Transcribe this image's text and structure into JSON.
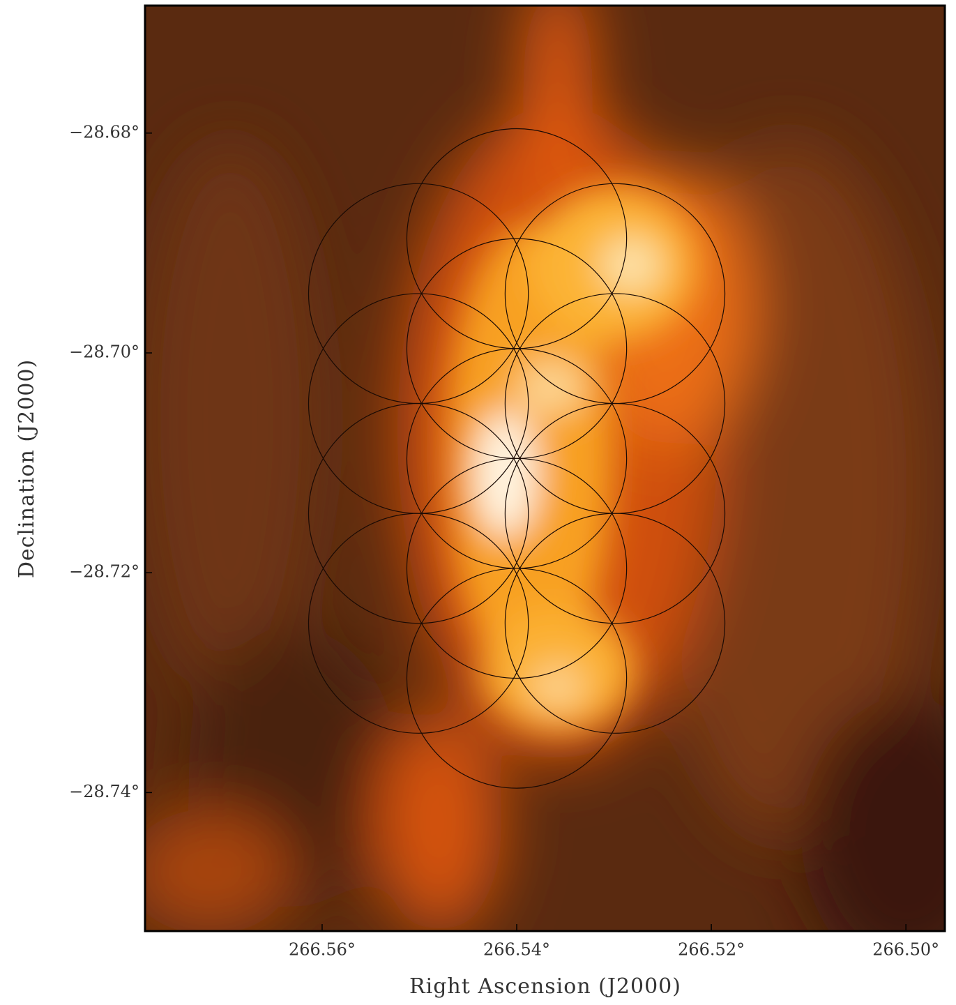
{
  "chart_data": {
    "type": "sky_map",
    "xlabel": "Right Ascension (J2000)",
    "ylabel": "Declination (J2000)",
    "xlim": [
      266.5782,
      266.496
    ],
    "ylim": [
      -28.7526,
      -28.6684
    ],
    "xticks": [
      {
        "value": 266.56,
        "label": "266.56°"
      },
      {
        "value": 266.54,
        "label": "266.54°"
      },
      {
        "value": 266.52,
        "label": "266.52°"
      },
      {
        "value": 266.5,
        "label": "266.50°"
      }
    ],
    "yticks": [
      {
        "value": -28.68,
        "label": "−28.68°"
      },
      {
        "value": -28.7,
        "label": "−28.70°"
      },
      {
        "value": -28.72,
        "label": "−28.72°"
      },
      {
        "value": -28.74,
        "label": "−28.74°"
      }
    ],
    "circles": {
      "color": "#1a0a04",
      "radius": 0.01,
      "x": [
        266.54,
        266.54,
        266.54,
        266.54,
        266.54,
        266.5501,
        266.5501,
        266.5501,
        266.5501,
        266.5299,
        266.5299,
        266.5299,
        266.5299
      ],
      "y": [
        -28.6896,
        -28.6996,
        -28.7096,
        -28.7196,
        -28.7296,
        -28.6946,
        -28.7046,
        -28.7146,
        -28.7246,
        -28.6946,
        -28.7046,
        -28.7146,
        -28.7246
      ]
    }
  }
}
